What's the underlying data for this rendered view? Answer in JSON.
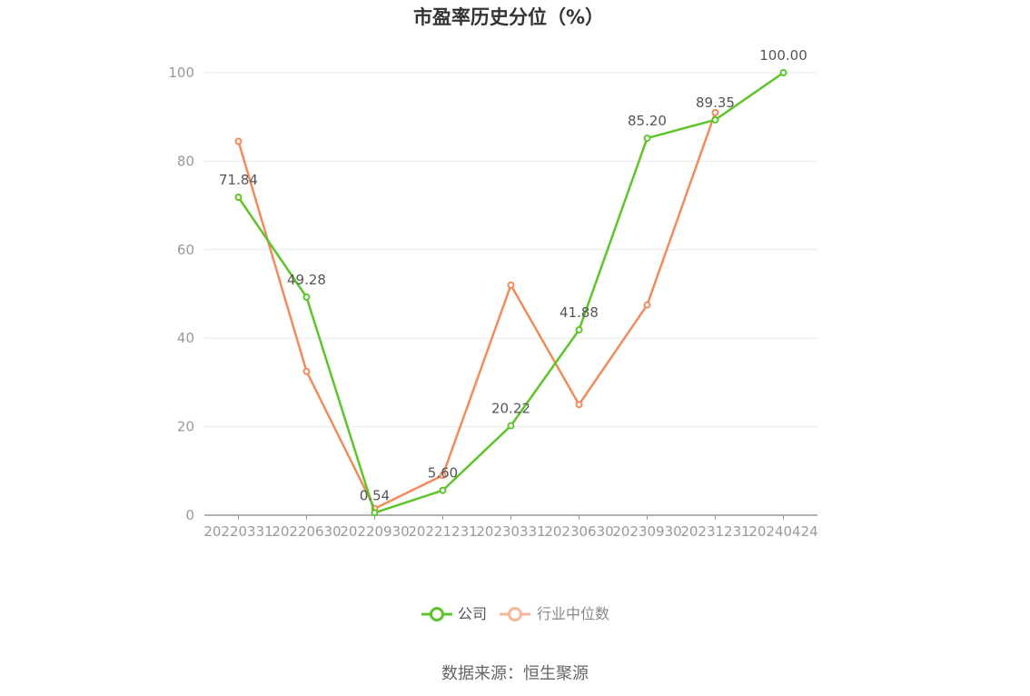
{
  "chart_data": {
    "type": "line",
    "title": "市盈率历史分位（%）",
    "categories": [
      "20220331",
      "20220630",
      "20220930",
      "20221231",
      "20230331",
      "20230630",
      "20230930",
      "20231231",
      "20240424"
    ],
    "series": [
      {
        "name": "公司",
        "color": "#5ec42c",
        "values": [
          71.84,
          49.28,
          0.54,
          5.6,
          20.22,
          41.88,
          85.2,
          89.35,
          100.0
        ],
        "labels": [
          "71.84",
          "49.28",
          "0.54",
          "5.60",
          "20.22",
          "41.88",
          "85.20",
          "89.35",
          "100.00"
        ]
      },
      {
        "name": "行业中位数",
        "color": "#f28b5b",
        "values": [
          84.5,
          32.5,
          1.5,
          9.0,
          52.0,
          25.0,
          47.5,
          91.0,
          null
        ]
      }
    ],
    "ylim": [
      0,
      100
    ],
    "yticks": [
      0,
      20,
      40,
      60,
      80,
      100
    ],
    "grid": true,
    "legend_position": "bottom"
  },
  "source": "数据来源：恒生聚源"
}
